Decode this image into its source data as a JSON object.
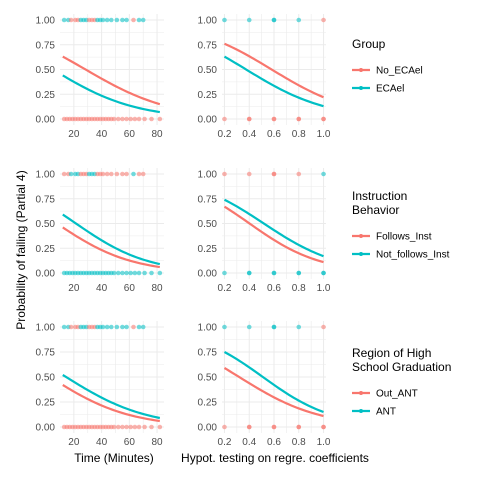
{
  "colors": {
    "series1": "#F8766D",
    "series2": "#00BFC4",
    "grid": "#EBEBEB"
  },
  "xlabel_left": "Time (Minutes)",
  "xlabel_right": "Hypot. testing on regre. coefficients",
  "ylabel": "Probability of failing (Partial 4)",
  "legends": [
    {
      "title": [
        "Group"
      ],
      "entries": [
        "No_ECAel",
        "ECAel"
      ]
    },
    {
      "title": [
        "Instruction",
        " Behavior"
      ],
      "entries": [
        "Follows_Inst",
        "Not_follows_Inst"
      ]
    },
    {
      "title": [
        "Region of High",
        " School Graduation"
      ],
      "entries": [
        "Out_ANT",
        "ANT"
      ]
    }
  ],
  "chart_data": [
    {
      "type": "line",
      "row": 0,
      "col": 0,
      "xlim": [
        10,
        85
      ],
      "ylim": [
        0,
        1
      ],
      "x_ticks": [
        20,
        40,
        60,
        80
      ],
      "y_ticks": [
        0,
        0.25,
        0.5,
        0.75,
        1
      ],
      "series": [
        {
          "name": "No_ECAel",
          "x": [
            12,
            82
          ],
          "y": [
            0.63,
            0.15
          ]
        },
        {
          "name": "ECAel",
          "x": [
            12,
            82
          ],
          "y": [
            0.44,
            0.07
          ]
        }
      ]
    },
    {
      "type": "line",
      "row": 0,
      "col": 1,
      "xlim": [
        0.18,
        1.02
      ],
      "ylim": [
        0,
        1
      ],
      "x_ticks": [
        0.2,
        0.4,
        0.6,
        0.8,
        1.0
      ],
      "y_ticks": [
        0,
        0.25,
        0.5,
        0.75,
        1
      ],
      "series": [
        {
          "name": "No_ECAel",
          "x": [
            0.2,
            1.0
          ],
          "y": [
            0.76,
            0.22
          ]
        },
        {
          "name": "ECAel",
          "x": [
            0.2,
            1.0
          ],
          "y": [
            0.63,
            0.13
          ]
        }
      ]
    },
    {
      "type": "line",
      "row": 1,
      "col": 0,
      "xlim": [
        10,
        85
      ],
      "ylim": [
        0,
        1
      ],
      "x_ticks": [
        20,
        40,
        60,
        80
      ],
      "y_ticks": [
        0,
        0.25,
        0.5,
        0.75,
        1
      ],
      "series": [
        {
          "name": "Follows_Inst",
          "x": [
            12,
            82
          ],
          "y": [
            0.46,
            0.06
          ]
        },
        {
          "name": "Not_follows_Inst",
          "x": [
            12,
            82
          ],
          "y": [
            0.59,
            0.09
          ]
        }
      ]
    },
    {
      "type": "line",
      "row": 1,
      "col": 1,
      "xlim": [
        0.18,
        1.02
      ],
      "ylim": [
        0,
        1
      ],
      "x_ticks": [
        0.2,
        0.4,
        0.6,
        0.8,
        1.0
      ],
      "y_ticks": [
        0,
        0.25,
        0.5,
        0.75,
        1
      ],
      "series": [
        {
          "name": "Follows_Inst",
          "x": [
            0.2,
            1.0
          ],
          "y": [
            0.67,
            0.11
          ]
        },
        {
          "name": "Not_follows_Inst",
          "x": [
            0.2,
            1.0
          ],
          "y": [
            0.74,
            0.17
          ]
        }
      ]
    },
    {
      "type": "line",
      "row": 2,
      "col": 0,
      "xlim": [
        10,
        85
      ],
      "ylim": [
        0,
        1
      ],
      "x_ticks": [
        20,
        40,
        60,
        80
      ],
      "y_ticks": [
        0,
        0.25,
        0.5,
        0.75,
        1
      ],
      "series": [
        {
          "name": "Out_ANT",
          "x": [
            12,
            82
          ],
          "y": [
            0.42,
            0.06
          ]
        },
        {
          "name": "ANT",
          "x": [
            12,
            82
          ],
          "y": [
            0.52,
            0.09
          ]
        }
      ]
    },
    {
      "type": "line",
      "row": 2,
      "col": 1,
      "xlim": [
        0.18,
        1.02
      ],
      "ylim": [
        0,
        1
      ],
      "x_ticks": [
        0.2,
        0.4,
        0.6,
        0.8,
        1.0
      ],
      "y_ticks": [
        0,
        0.25,
        0.5,
        0.75,
        1
      ],
      "series": [
        {
          "name": "Out_ANT",
          "x": [
            0.2,
            1.0
          ],
          "y": [
            0.59,
            0.11
          ]
        },
        {
          "name": "ANT",
          "x": [
            0.2,
            1.0
          ],
          "y": [
            0.75,
            0.15
          ]
        }
      ]
    }
  ],
  "observations_time": [
    {
      "x": 13,
      "y": 1,
      "g": 1
    },
    {
      "x": 16,
      "y": 1,
      "g": 0
    },
    {
      "x": 18,
      "y": 1,
      "g": 0
    },
    {
      "x": 21,
      "y": 1,
      "g": 1
    },
    {
      "x": 23,
      "y": 1,
      "g": 0
    },
    {
      "x": 25,
      "y": 1,
      "g": 0
    },
    {
      "x": 27,
      "y": 1,
      "g": 1
    },
    {
      "x": 29,
      "y": 1,
      "g": 0
    },
    {
      "x": 31,
      "y": 1,
      "g": 0
    },
    {
      "x": 33,
      "y": 1,
      "g": 1
    },
    {
      "x": 35,
      "y": 1,
      "g": 0
    },
    {
      "x": 37,
      "y": 1,
      "g": 0
    },
    {
      "x": 39,
      "y": 1,
      "g": 1
    },
    {
      "x": 41,
      "y": 1,
      "g": 0
    },
    {
      "x": 44,
      "y": 1,
      "g": 1
    },
    {
      "x": 47,
      "y": 1,
      "g": 0
    },
    {
      "x": 51,
      "y": 1,
      "g": 1
    },
    {
      "x": 55,
      "y": 1,
      "g": 0
    },
    {
      "x": 58,
      "y": 1,
      "g": 1
    },
    {
      "x": 63,
      "y": 1,
      "g": 1
    },
    {
      "x": 67,
      "y": 1,
      "g": 1
    },
    {
      "x": 70,
      "y": 1,
      "g": 0
    },
    {
      "x": 13,
      "y": 0,
      "g": 0
    },
    {
      "x": 15,
      "y": 0,
      "g": 1
    },
    {
      "x": 17,
      "y": 0,
      "g": 0
    },
    {
      "x": 19,
      "y": 0,
      "g": 1
    },
    {
      "x": 21,
      "y": 0,
      "g": 0
    },
    {
      "x": 23,
      "y": 0,
      "g": 1
    },
    {
      "x": 25,
      "y": 0,
      "g": 0
    },
    {
      "x": 27,
      "y": 0,
      "g": 1
    },
    {
      "x": 29,
      "y": 0,
      "g": 0
    },
    {
      "x": 31,
      "y": 0,
      "g": 1
    },
    {
      "x": 33,
      "y": 0,
      "g": 0
    },
    {
      "x": 35,
      "y": 0,
      "g": 1
    },
    {
      "x": 37,
      "y": 0,
      "g": 0
    },
    {
      "x": 39,
      "y": 0,
      "g": 1
    },
    {
      "x": 41,
      "y": 0,
      "g": 0
    },
    {
      "x": 43,
      "y": 0,
      "g": 1
    },
    {
      "x": 45,
      "y": 0,
      "g": 0
    },
    {
      "x": 47,
      "y": 0,
      "g": 1
    },
    {
      "x": 49,
      "y": 0,
      "g": 0
    },
    {
      "x": 52,
      "y": 0,
      "g": 1
    },
    {
      "x": 55,
      "y": 0,
      "g": 0
    },
    {
      "x": 58,
      "y": 0,
      "g": 1
    },
    {
      "x": 61,
      "y": 0,
      "g": 0
    },
    {
      "x": 64,
      "y": 0,
      "g": 1
    },
    {
      "x": 67,
      "y": 0,
      "g": 0
    },
    {
      "x": 71,
      "y": 0,
      "g": 1
    },
    {
      "x": 76,
      "y": 0,
      "g": 0
    },
    {
      "x": 82,
      "y": 0,
      "g": 1
    }
  ],
  "observations_hyp": [
    {
      "x": 0.2,
      "y": 1,
      "g": 1
    },
    {
      "x": 0.4,
      "y": 1,
      "g": 0
    },
    {
      "x": 0.6,
      "y": 1,
      "g": 1
    },
    {
      "x": 0.6,
      "y": 1,
      "g": 0
    },
    {
      "x": 0.8,
      "y": 1,
      "g": 1
    },
    {
      "x": 1.0,
      "y": 1,
      "g": 1
    },
    {
      "x": 0.2,
      "y": 0,
      "g": 0
    },
    {
      "x": 0.4,
      "y": 0,
      "g": 1
    },
    {
      "x": 0.4,
      "y": 0,
      "g": 0
    },
    {
      "x": 0.6,
      "y": 0,
      "g": 1
    },
    {
      "x": 0.6,
      "y": 0,
      "g": 0
    },
    {
      "x": 0.8,
      "y": 0,
      "g": 1
    },
    {
      "x": 0.8,
      "y": 0,
      "g": 0
    },
    {
      "x": 1.0,
      "y": 0,
      "g": 1
    },
    {
      "x": 1.0,
      "y": 0,
      "g": 0
    }
  ]
}
